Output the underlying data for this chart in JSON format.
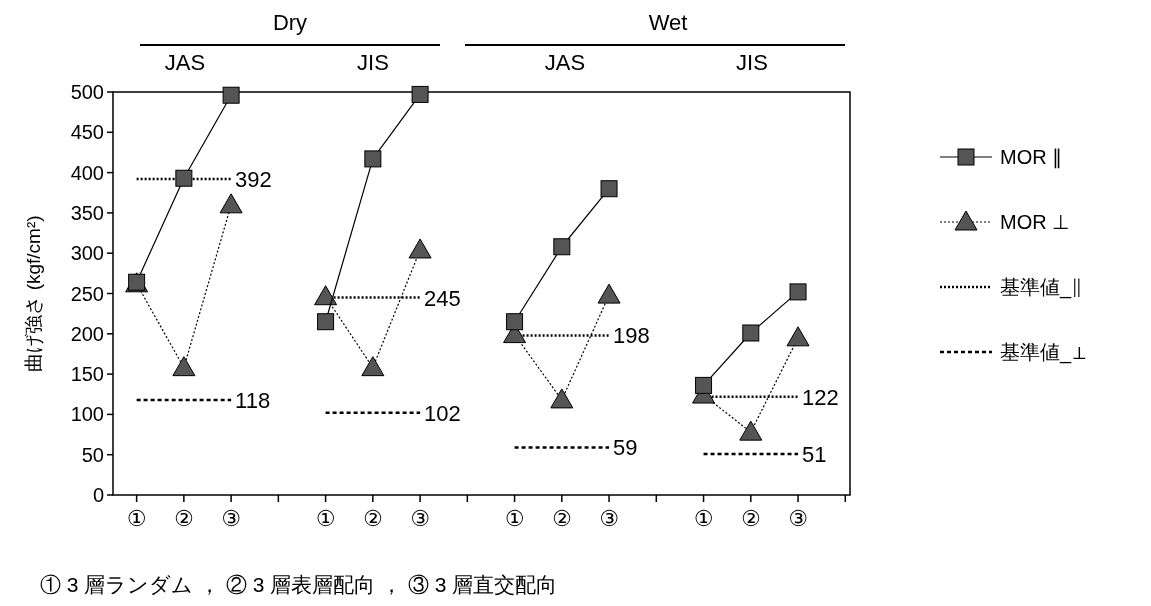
{
  "chart_data": {
    "type": "line",
    "ylabel": "曲げ強さ (kgf/cm²)",
    "categories": [
      "①",
      "②",
      "③",
      null,
      "①",
      "②",
      "③",
      null,
      "①",
      "②",
      "③",
      null,
      "①",
      "②",
      "③",
      null
    ],
    "series": [
      {
        "name": "MOR ∥",
        "color": "#555555",
        "marker": "square",
        "line_style": "solid",
        "values": [
          264,
          393,
          496,
          null,
          215,
          417,
          497,
          null,
          215,
          308,
          380,
          null,
          136,
          201,
          252,
          null
        ]
      },
      {
        "name": "MOR ⊥",
        "color": "#555555",
        "marker": "triangle",
        "line_style": "dotted",
        "values": [
          262,
          158,
          360,
          null,
          246,
          158,
          304,
          null,
          199,
          118,
          248,
          null,
          124,
          78,
          195,
          null
        ]
      },
      {
        "name": "基準値_∥",
        "color": "#000000",
        "marker": "none",
        "line_style": "dotted",
        "values": [
          392,
          392,
          392,
          null,
          245,
          245,
          245,
          null,
          198,
          198,
          198,
          null,
          122,
          122,
          122,
          null
        ],
        "value_labels": [
          null,
          null,
          "392",
          null,
          null,
          null,
          "245",
          null,
          null,
          null,
          "198",
          null,
          null,
          null,
          "122",
          null
        ]
      },
      {
        "name": "基準値_⊥",
        "color": "#000000",
        "marker": "none",
        "line_style": "dashed",
        "values": [
          118,
          118,
          118,
          null,
          102,
          102,
          102,
          null,
          59,
          59,
          59,
          null,
          51,
          51,
          51,
          null
        ],
        "value_labels": [
          null,
          null,
          "118",
          null,
          null,
          null,
          "102",
          null,
          null,
          null,
          "59",
          null,
          null,
          null,
          "51",
          null
        ]
      }
    ],
    "ylim": [
      0,
      500
    ],
    "yticks": [
      0,
      50,
      100,
      150,
      200,
      250,
      300,
      350,
      400,
      450,
      500
    ],
    "legend": "right",
    "annotations": [
      "Dry",
      "Wet",
      "JAS",
      "JIS",
      "JAS",
      "JIS",
      "① 3 層ランダム ， ② 3 層表層配向 ， ③ 3 層直交配向"
    ]
  }
}
